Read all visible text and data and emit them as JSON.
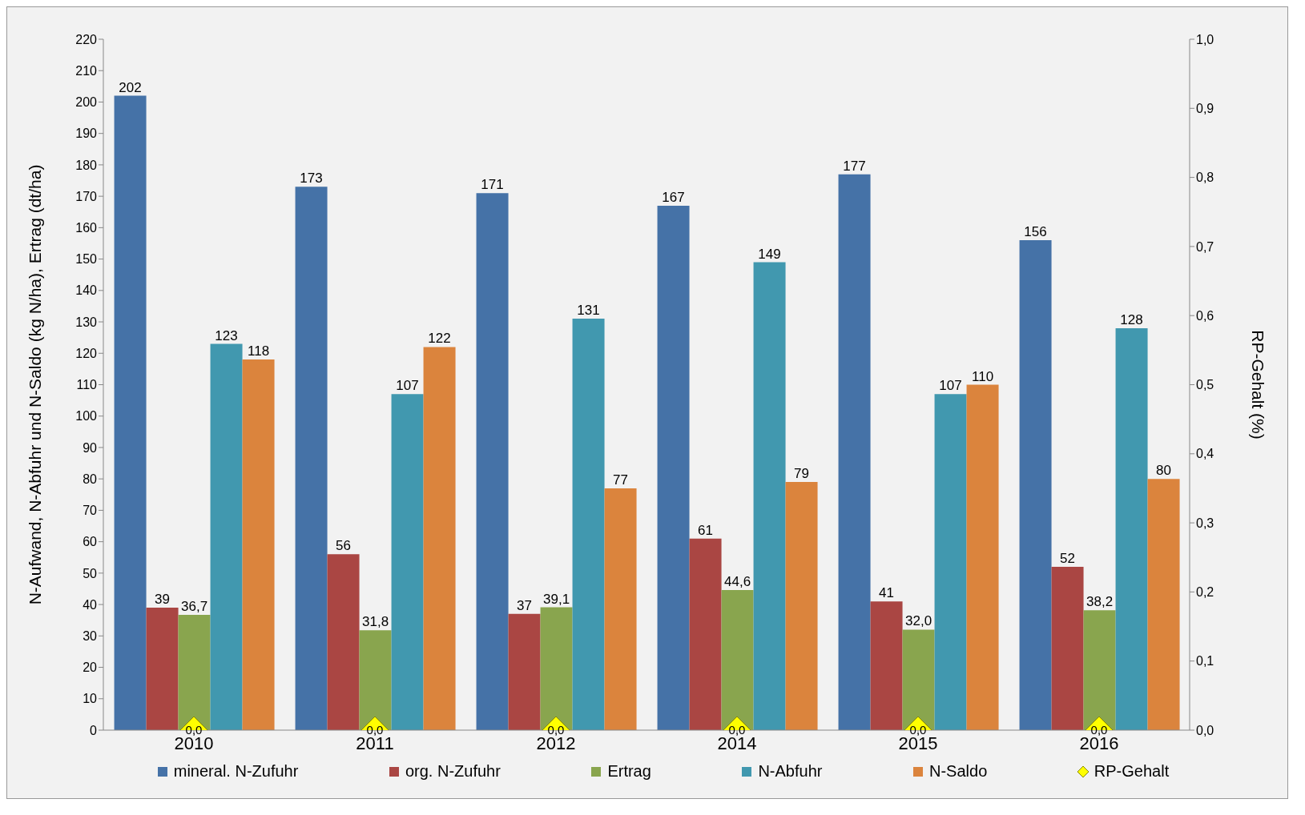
{
  "chart_data": {
    "type": "bar",
    "categories": [
      "2010",
      "2011",
      "2012",
      "2014",
      "2015",
      "2016"
    ],
    "ylabel": "N-Aufwand, N-Abfuhr und N-Saldo (kg N/ha), Ertrag (dt/ha)",
    "y2label": "RP-Gehalt (%)",
    "ylim": [
      0,
      220
    ],
    "yticks": [
      0,
      10,
      20,
      30,
      40,
      50,
      60,
      70,
      80,
      90,
      100,
      110,
      120,
      130,
      140,
      150,
      160,
      170,
      180,
      190,
      200,
      210,
      220
    ],
    "y2lim": [
      0,
      1
    ],
    "y2ticks": [
      {
        "value": 0,
        "label": "0,0"
      },
      {
        "value": 0.1,
        "label": "0,1"
      },
      {
        "value": 0.2,
        "label": "0,2"
      },
      {
        "value": 0.3,
        "label": "0,3"
      },
      {
        "value": 0.4,
        "label": "0,4"
      },
      {
        "value": 0.5,
        "label": "0,5"
      },
      {
        "value": 0.6,
        "label": "0,6"
      },
      {
        "value": 0.7,
        "label": "0,7"
      },
      {
        "value": 0.8,
        "label": "0,8"
      },
      {
        "value": 0.9,
        "label": "0,9"
      },
      {
        "value": 1,
        "label": "1,0"
      }
    ],
    "grid": false,
    "legend": "bottom",
    "series": [
      {
        "name": "mineral. N-Zufuhr",
        "color": "#4572a7",
        "values": [
          202,
          173,
          171,
          167,
          177,
          156
        ],
        "value_labels": [
          "202",
          "173",
          "171",
          "167",
          "177",
          "156"
        ]
      },
      {
        "name": "org. N-Zufuhr",
        "color": "#aa4643",
        "values": [
          39,
          56,
          37,
          61,
          41,
          52
        ],
        "value_labels": [
          "39",
          "56",
          "37",
          "61",
          "41",
          "52"
        ]
      },
      {
        "name": "Ertrag",
        "color": "#89a54e",
        "values": [
          36.7,
          31.8,
          39.1,
          44.6,
          32.0,
          38.2
        ],
        "value_labels": [
          "36,7",
          "31,8",
          "39,1",
          "44,6",
          "32,0",
          "38,2"
        ]
      },
      {
        "name": "N-Abfuhr",
        "color": "#4198af",
        "values": [
          123,
          107,
          131,
          149,
          107,
          128
        ],
        "value_labels": [
          "123",
          "107",
          "131",
          "149",
          "107",
          "128"
        ]
      },
      {
        "name": "N-Saldo",
        "color": "#db843d",
        "values": [
          118,
          122,
          77,
          79,
          110,
          80
        ],
        "value_labels": [
          "118",
          "122",
          "77",
          "79",
          "110",
          "80"
        ]
      },
      {
        "name": "RP-Gehalt",
        "type": "scatter",
        "axis": "y2",
        "marker": "diamond",
        "color": "#ffff00",
        "values": [
          0,
          0,
          0,
          0,
          0,
          0
        ],
        "value_labels": [
          "0,0",
          "0,0",
          "0,0",
          "0,0",
          "0,0",
          "0,0"
        ]
      }
    ]
  }
}
